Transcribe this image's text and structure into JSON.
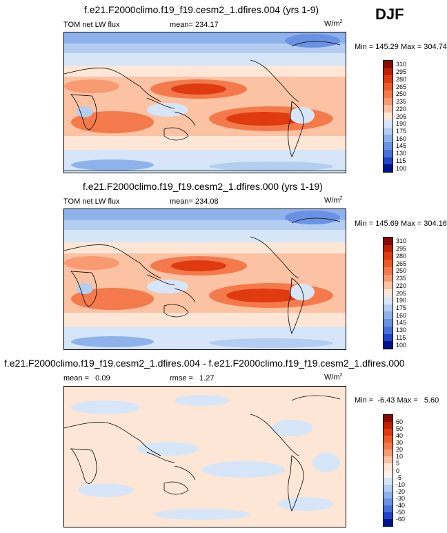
{
  "season": "DJF",
  "panels": [
    {
      "title": "f.e21.F2000climo.f19_f19.cesm2_1.dfires.004 (yrs 1-9)",
      "left_label": "TOM net LW flux",
      "center_label": "mean= 234.17",
      "units_base": "W/m",
      "units_exp": "2",
      "minmax": "Min = 145.29 Max = 304.74",
      "colorbar_levels": [
        "310",
        "295",
        "280",
        "265",
        "250",
        "235",
        "220",
        "205",
        "190",
        "175",
        "160",
        "145",
        "130",
        "115",
        "100"
      ],
      "colorbar_colors": [
        "#8b0a00",
        "#c02000",
        "#e03a10",
        "#ef5a2a",
        "#f47a4c",
        "#f89a72",
        "#fbc2a4",
        "#fde6d6",
        "#d6e6f8",
        "#b4cef2",
        "#8eb2ec",
        "#6a92e2",
        "#4670da",
        "#2244c8",
        "#00128c"
      ]
    },
    {
      "title": "f.e21.F2000climo.f19_f19.cesm2_1.dfires.000 (yrs 1-19)",
      "left_label": "TOM net LW flux",
      "center_label": "mean= 234.08",
      "units_base": "W/m",
      "units_exp": "2",
      "minmax": "Min = 145.69 Max = 304.16",
      "colorbar_levels": [
        "310",
        "295",
        "280",
        "265",
        "250",
        "235",
        "220",
        "205",
        "190",
        "175",
        "160",
        "145",
        "130",
        "115",
        "100"
      ],
      "colorbar_colors": [
        "#8b0a00",
        "#c02000",
        "#e03a10",
        "#ef5a2a",
        "#f47a4c",
        "#f89a72",
        "#fbc2a4",
        "#fde6d6",
        "#d6e6f8",
        "#b4cef2",
        "#8eb2ec",
        "#6a92e2",
        "#4670da",
        "#2244c8",
        "#00128c"
      ]
    },
    {
      "title": "f.e21.F2000climo.f19_f19.cesm2_1.dfires.004 - f.e21.F2000climo.f19_f19.cesm2_1.dfires.000",
      "left_label": "mean =   0.09",
      "center_label": "rmse =   1.27",
      "units_base": "W/m",
      "units_exp": "2",
      "minmax": "Min =  -6.43 Max =   5.60",
      "colorbar_levels": [
        "60",
        "50",
        "40",
        "30",
        "20",
        "10",
        "5",
        "0",
        "-5",
        "-10",
        "-20",
        "-30",
        "-40",
        "-50",
        "-60"
      ],
      "colorbar_colors": [
        "#8b0a00",
        "#c02000",
        "#e03a10",
        "#ef5a2a",
        "#f47a4c",
        "#f89a72",
        "#fbc2a4",
        "#fde6d6",
        "#fdf2ea",
        "#d6e6f8",
        "#b4cef2",
        "#8eb2ec",
        "#6a92e2",
        "#4670da",
        "#2244c8",
        "#00128c"
      ]
    }
  ],
  "chart_data": [
    {
      "type": "heatmap",
      "title": "f.e21.F2000climo.f19_f19.cesm2_1.dfires.004 (yrs 1-9)",
      "variable": "TOM net LW flux",
      "units": "W/m2",
      "mean": 234.17,
      "min": 145.29,
      "max": 304.74,
      "contour_levels": [
        100,
        115,
        130,
        145,
        160,
        175,
        190,
        205,
        220,
        235,
        250,
        265,
        280,
        295,
        310
      ]
    },
    {
      "type": "heatmap",
      "title": "f.e21.F2000climo.f19_f19.cesm2_1.dfires.000 (yrs 1-19)",
      "variable": "TOM net LW flux",
      "units": "W/m2",
      "mean": 234.08,
      "min": 145.69,
      "max": 304.16,
      "contour_levels": [
        100,
        115,
        130,
        145,
        160,
        175,
        190,
        205,
        220,
        235,
        250,
        265,
        280,
        295,
        310
      ]
    },
    {
      "type": "heatmap",
      "title": "f.e21.F2000climo.f19_f19.cesm2_1.dfires.004 - f.e21.F2000climo.f19_f19.cesm2_1.dfires.000",
      "units": "W/m2",
      "mean": 0.09,
      "rmse": 1.27,
      "min": -6.43,
      "max": 5.6,
      "contour_levels": [
        -60,
        -50,
        -40,
        -30,
        -20,
        -10,
        -5,
        0,
        5,
        10,
        20,
        30,
        40,
        50,
        60
      ]
    }
  ]
}
